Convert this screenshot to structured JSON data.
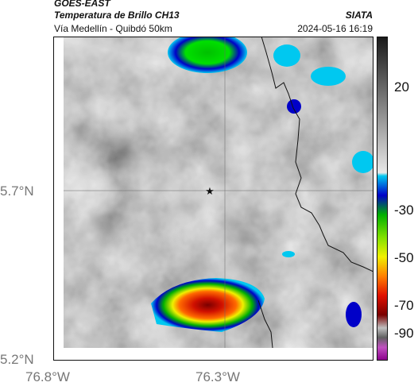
{
  "header": {
    "satellite": "GOES-EAST",
    "product": "Temperatura de Brillo CH13",
    "route": "Vía Medellín - Quibdó 50km",
    "org": "SIATA",
    "datetime": "2024-05-16 16:19"
  },
  "map": {
    "lat_labels": [
      "5.7°N",
      "5.2°N"
    ],
    "lon_labels": [
      "76.8°W",
      "76.3°W"
    ],
    "marker_icon": "star-icon"
  },
  "colorbar": {
    "ticks": [
      "20",
      "-30",
      "-50",
      "-70",
      "-90"
    ],
    "colors": {
      "cold_purple": "#c050c0",
      "dark_red": "#7a0000",
      "red": "#e01000",
      "orange": "#ff8000",
      "yellow": "#f0f000",
      "green": "#00b000",
      "blue": "#0000c8",
      "cyan": "#00c8f0"
    }
  }
}
